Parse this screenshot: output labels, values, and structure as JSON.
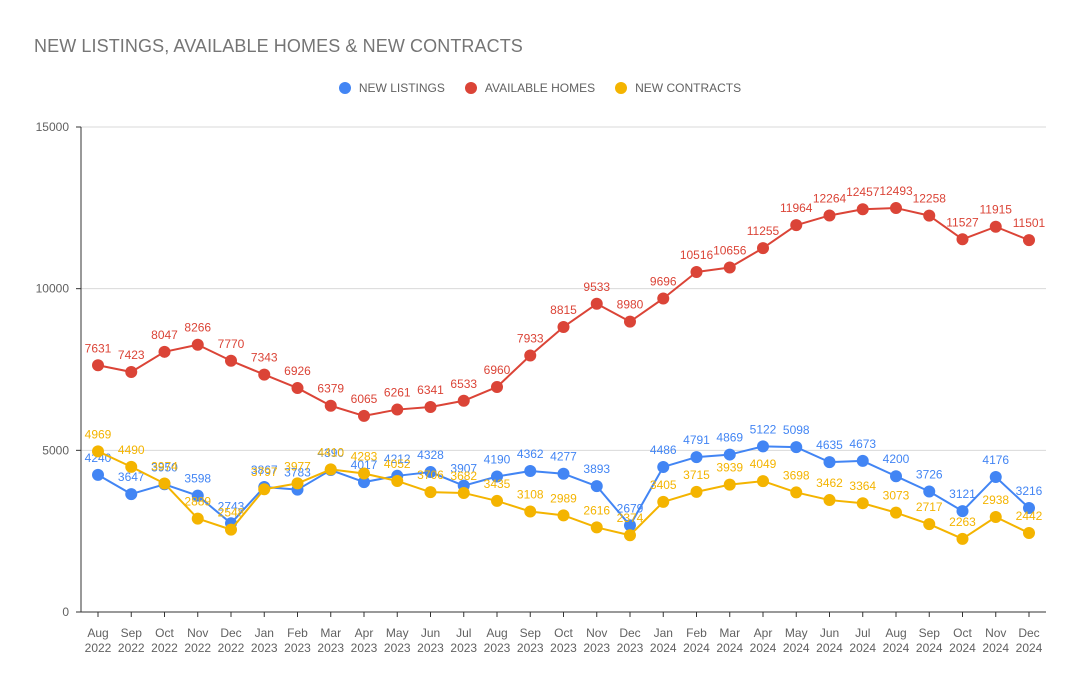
{
  "chart_data": {
    "type": "line",
    "title": "NEW LISTINGS, AVAILABLE HOMES & NEW CONTRACTS",
    "xlabel": "",
    "ylabel": "",
    "ylim": [
      0,
      15000
    ],
    "yticks": [
      0,
      5000,
      10000,
      15000
    ],
    "grid": true,
    "legend_position": "top",
    "categories": [
      [
        "Aug",
        "2022"
      ],
      [
        "Sep",
        "2022"
      ],
      [
        "Oct",
        "2022"
      ],
      [
        "Nov",
        "2022"
      ],
      [
        "Dec",
        "2022"
      ],
      [
        "Jan",
        "2023"
      ],
      [
        "Feb",
        "2023"
      ],
      [
        "Mar",
        "2023"
      ],
      [
        "Apr",
        "2023"
      ],
      [
        "May",
        "2023"
      ],
      [
        "Jun",
        "2023"
      ],
      [
        "Jul",
        "2023"
      ],
      [
        "Aug",
        "2023"
      ],
      [
        "Sep",
        "2023"
      ],
      [
        "Oct",
        "2023"
      ],
      [
        "Nov",
        "2023"
      ],
      [
        "Dec",
        "2023"
      ],
      [
        "Jan",
        "2024"
      ],
      [
        "Feb",
        "2024"
      ],
      [
        "Mar",
        "2024"
      ],
      [
        "Apr",
        "2024"
      ],
      [
        "May",
        "2024"
      ],
      [
        "Jun",
        "2024"
      ],
      [
        "Jul",
        "2024"
      ],
      [
        "Aug",
        "2024"
      ],
      [
        "Sep",
        "2024"
      ],
      [
        "Oct",
        "2024"
      ],
      [
        "Nov",
        "2024"
      ],
      [
        "Dec",
        "2024"
      ]
    ],
    "series": [
      {
        "name": "NEW LISTINGS",
        "color": "#4285f4",
        "values": [
          4240,
          3647,
          3950,
          3598,
          2743,
          3867,
          3783,
          4390,
          4017,
          4212,
          4328,
          3907,
          4190,
          4362,
          4277,
          3893,
          2679,
          4486,
          4791,
          4869,
          5122,
          5098,
          4635,
          4673,
          4200,
          3726,
          3121,
          4176,
          3216
        ]
      },
      {
        "name": "AVAILABLE HOMES",
        "color": "#db4437",
        "values": [
          7631,
          7423,
          8047,
          8266,
          7770,
          7343,
          6926,
          6379,
          6065,
          6261,
          6341,
          6533,
          6960,
          7933,
          8815,
          9533,
          8980,
          9696,
          10516,
          10656,
          11255,
          11964,
          12264,
          12457,
          12493,
          12258,
          11527,
          11915,
          11501
        ]
      },
      {
        "name": "NEW CONTRACTS",
        "color": "#f4b400",
        "values": [
          4969,
          4490,
          3974,
          2889,
          2548,
          3797,
          3977,
          4410,
          4283,
          4052,
          3706,
          3682,
          3435,
          3108,
          2989,
          2616,
          2374,
          3405,
          3715,
          3939,
          4049,
          3698,
          3462,
          3364,
          3073,
          2717,
          2263,
          2938,
          2442
        ]
      }
    ]
  }
}
